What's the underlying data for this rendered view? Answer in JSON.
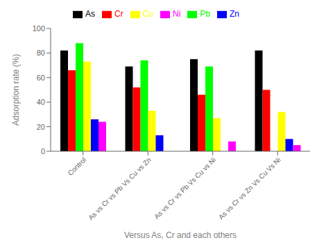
{
  "chart_data": {
    "type": "bar",
    "xlabel": "Versus As, Cr and each others",
    "ylabel": "Adsorption rate (%)",
    "categories": [
      "Control",
      "As vs Cr vs Pb Vs Cu vs Zn",
      "As vs Cr vs Pb Vs Cu vs Ni",
      "As vs Cr vs Zn Vs Cu Vs Ni"
    ],
    "series": [
      {
        "name": "As",
        "color": "#000000",
        "values": [
          82,
          69,
          75,
          82
        ]
      },
      {
        "name": "Cr",
        "color": "#ff0000",
        "values": [
          66,
          52,
          46,
          50
        ]
      },
      {
        "name": "Pb",
        "color": "#00ff00",
        "values": [
          88,
          74,
          69,
          0
        ]
      },
      {
        "name": "Cu",
        "color": "#ffff00",
        "values": [
          73,
          33,
          27,
          32
        ]
      },
      {
        "name": "Zn",
        "color": "#0000ff",
        "values": [
          26,
          13,
          0,
          10
        ]
      },
      {
        "name": "Ni",
        "color": "#ff00ff",
        "values": [
          24,
          0,
          8,
          5
        ]
      }
    ],
    "ylim": [
      0,
      100
    ],
    "yticks": [
      0,
      20,
      40,
      60,
      80,
      100
    ],
    "grid": false,
    "legend": "top"
  }
}
